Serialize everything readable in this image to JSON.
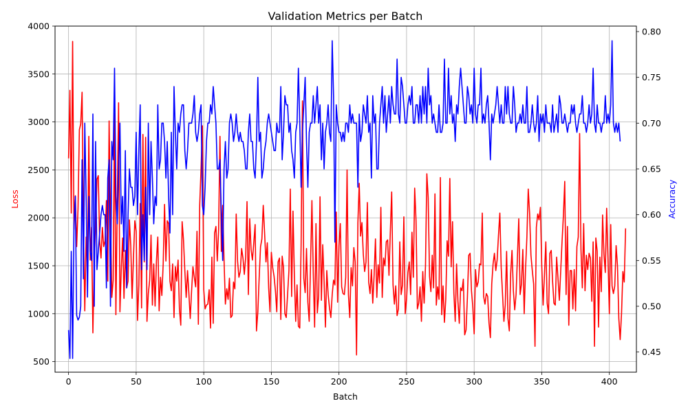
{
  "chart_data": {
    "type": "line",
    "title": "Validation Metrics per Batch",
    "xlabel": "Batch",
    "xlim": [
      -10,
      420
    ],
    "xticks": [
      0,
      50,
      100,
      150,
      200,
      250,
      300,
      350,
      400
    ],
    "grid": true,
    "left_axis": {
      "label": "Loss",
      "color": "#ff0000",
      "ylim": [
        390,
        4000
      ],
      "ticks": [
        500,
        1000,
        1500,
        2000,
        2500,
        3000,
        3500,
        4000
      ]
    },
    "right_axis": {
      "label": "Accuracy",
      "color": "#0000ff",
      "ylim": [
        0.428,
        0.806
      ],
      "ticks": [
        "0.45",
        "0.50",
        "0.55",
        "0.60",
        "0.65",
        "0.70",
        "0.75",
        "0.80"
      ]
    },
    "series": [
      {
        "axis": "left",
        "color": "#ff0000",
        "x_start": 0,
        "x_step": 1,
        "values": [
          2620,
          3330,
          2050,
          3840,
          1880,
          2230,
          1700,
          2100,
          2920,
          2980,
          3310,
          1900,
          1030,
          1800,
          1500,
          2850,
          1560,
          1900,
          800,
          1550,
          1900,
          2400,
          2440,
          1760,
          1580,
          1900,
          1700,
          1760,
          2180,
          1340,
          3010,
          2050,
          1170,
          1350,
          3090,
          990,
          2140,
          3200,
          1020,
          1470,
          1790,
          1160,
          1660,
          1270,
          1340,
          1980,
          1710,
          1160,
          1580,
          1970,
          1860,
          930,
          1300,
          2150,
          1060,
          2870,
          1540,
          2840,
          920,
          1210,
          1350,
          1820,
          1090,
          1520,
          1080,
          1550,
          1800,
          1030,
          1380,
          1190,
          1520,
          2140,
          1550,
          1970,
          1940,
          1340,
          1240,
          1520,
          960,
          1490,
          1340,
          1560,
          1050,
          880,
          1960,
          1770,
          1450,
          1170,
          1450,
          1210,
          950,
          1240,
          1490,
          1380,
          1280,
          1860,
          890,
          2130,
          2520,
          2960,
          1250,
          1050,
          1090,
          1100,
          1250,
          850,
          1590,
          900,
          1840,
          1910,
          1550,
          1880,
          2850,
          1650,
          2130,
          1560,
          1100,
          1260,
          1150,
          1370,
          960,
          980,
          1330,
          1260,
          2040,
          1550,
          1380,
          1440,
          1680,
          1580,
          1410,
          1590,
          2170,
          1200,
          1990,
          1670,
          1560,
          1740,
          1930,
          820,
          1020,
          1380,
          1700,
          1780,
          2130,
          1840,
          1540,
          1740,
          1270,
          1020,
          1640,
          1480,
          1390,
          1240,
          1020,
          1540,
          1580,
          940,
          1600,
          1480,
          1000,
          960,
          1200,
          1450,
          2300,
          1180,
          2070,
          1410,
          920,
          1300,
          870,
          850,
          1710,
          3220,
          1370,
          1220,
          1680,
          1120,
          920,
          1530,
          2180,
          1420,
          860,
          1940,
          1010,
          1190,
          2220,
          1140,
          1720,
          1340,
          860,
          1450,
          1200,
          1060,
          960,
          1200,
          1350,
          1300,
          2060,
          1120,
          1710,
          1940,
          1280,
          1210,
          1200,
          1380,
          2500,
          1200,
          960,
          1480,
          1290,
          1690,
          1540,
          570,
          1950,
          2360,
          1810,
          1950,
          1620,
          1440,
          1540,
          2160,
          1330,
          1210,
          1460,
          1110,
          1400,
          1780,
          1170,
          1510,
          1320,
          2110,
          1170,
          1580,
          1500,
          1750,
          1770,
          1400,
          1860,
          2270,
          1300,
          1100,
          1290,
          980,
          1050,
          1750,
          1200,
          1300,
          2010,
          1000,
          1150,
          1430,
          1540,
          1200,
          1850,
          1380,
          2310,
          1970,
          1050,
          1110,
          1280,
          920,
          1440,
          1110,
          1500,
          2460,
          2210,
          1390,
          1230,
          1610,
          1270,
          2250,
          1090,
          1280,
          1150,
          2420,
          990,
          1290,
          910,
          1150,
          1760,
          1600,
          2410,
          1490,
          1960,
          1210,
          920,
          1520,
          1130,
          900,
          1270,
          1240,
          1360,
          780,
          830,
          1170,
          1610,
          1630,
          1240,
          1070,
          790,
          1460,
          1280,
          1330,
          1520,
          1510,
          2050,
          1180,
          1100,
          1210,
          1180,
          900,
          750,
          1310,
          1520,
          1630,
          1450,
          1560,
          1820,
          2050,
          1480,
          1200,
          920,
          1090,
          1650,
          950,
          820,
          1420,
          1660,
          1240,
          1040,
          1200,
          1590,
          1990,
          1200,
          1310,
          1670,
          1000,
          1460,
          1800,
          2300,
          2050,
          1610,
          1450,
          1310,
          660,
          1900,
          2040,
          1980,
          2110,
          1500,
          1090,
          1410,
          1750,
          1110,
          1000,
          1630,
          1660,
          1340,
          1110,
          1090,
          1590,
          1370,
          1140,
          1440,
          1750,
          2020,
          2380,
          1200,
          1910,
          880,
          1450,
          1450,
          1050,
          1460,
          1030,
          1700,
          1800,
          2880,
          1670,
          1270,
          1940,
          1240,
          1610,
          1460,
          1630,
          1580,
          1130,
          1750,
          660,
          1790,
          1650,
          860,
          1590,
          1230,
          2030,
          1620,
          1430,
          2100,
          1570,
          1000,
          1930,
          1290,
          1210,
          1290,
          1710,
          1500,
          950,
          730,
          1000,
          1440,
          1330,
          1890
        ]
      },
      {
        "axis": "right",
        "color": "#0000ff",
        "x_start": 0,
        "x_step": 1,
        "values": [
          0.474,
          0.443,
          0.56,
          0.443,
          0.59,
          0.62,
          0.49,
          0.485,
          0.488,
          0.5,
          0.66,
          0.53,
          0.7,
          0.62,
          0.51,
          0.62,
          0.56,
          0.55,
          0.71,
          0.5,
          0.68,
          0.54,
          0.56,
          0.58,
          0.6,
          0.61,
          0.6,
          0.6,
          0.52,
          0.64,
          0.66,
          0.5,
          0.68,
          0.66,
          0.76,
          0.62,
          0.59,
          0.65,
          0.7,
          0.59,
          0.62,
          0.56,
          0.67,
          0.52,
          0.6,
          0.65,
          0.63,
          0.63,
          0.61,
          0.62,
          0.69,
          0.6,
          0.67,
          0.72,
          0.54,
          0.6,
          0.55,
          0.63,
          0.54,
          0.7,
          0.6,
          0.68,
          0.64,
          0.59,
          0.62,
          0.61,
          0.72,
          0.65,
          0.66,
          0.7,
          0.7,
          0.68,
          0.64,
          0.68,
          0.62,
          0.58,
          0.69,
          0.6,
          0.74,
          0.69,
          0.65,
          0.7,
          0.69,
          0.71,
          0.72,
          0.72,
          0.67,
          0.65,
          0.67,
          0.7,
          0.7,
          0.7,
          0.71,
          0.73,
          0.69,
          0.68,
          0.69,
          0.71,
          0.72,
          0.61,
          0.6,
          0.63,
          0.68,
          0.7,
          0.7,
          0.72,
          0.71,
          0.74,
          0.72,
          0.7,
          0.65,
          0.65,
          0.66,
          0.6,
          0.55,
          0.65,
          0.68,
          0.64,
          0.65,
          0.7,
          0.71,
          0.7,
          0.68,
          0.69,
          0.71,
          0.69,
          0.68,
          0.69,
          0.68,
          0.68,
          0.67,
          0.65,
          0.65,
          0.69,
          0.71,
          0.68,
          0.68,
          0.65,
          0.64,
          0.68,
          0.75,
          0.68,
          0.69,
          0.64,
          0.65,
          0.67,
          0.68,
          0.7,
          0.71,
          0.7,
          0.69,
          0.68,
          0.67,
          0.67,
          0.7,
          0.69,
          0.69,
          0.74,
          0.66,
          0.69,
          0.73,
          0.72,
          0.72,
          0.69,
          0.7,
          0.67,
          0.66,
          0.64,
          0.69,
          0.7,
          0.76,
          0.7,
          0.63,
          0.69,
          0.72,
          0.75,
          0.68,
          0.63,
          0.69,
          0.7,
          0.7,
          0.73,
          0.7,
          0.72,
          0.74,
          0.7,
          0.72,
          0.66,
          0.7,
          0.65,
          0.69,
          0.7,
          0.72,
          0.69,
          0.68,
          0.79,
          0.73,
          0.57,
          0.72,
          0.7,
          0.69,
          0.69,
          0.68,
          0.69,
          0.68,
          0.7,
          0.7,
          0.69,
          0.72,
          0.7,
          0.71,
          0.7,
          0.7,
          0.7,
          0.63,
          0.71,
          0.68,
          0.69,
          0.72,
          0.71,
          0.7,
          0.73,
          0.69,
          0.7,
          0.64,
          0.73,
          0.7,
          0.71,
          0.65,
          0.65,
          0.7,
          0.72,
          0.74,
          0.7,
          0.73,
          0.69,
          0.71,
          0.73,
          0.7,
          0.74,
          0.72,
          0.71,
          0.71,
          0.77,
          0.71,
          0.7,
          0.75,
          0.74,
          0.72,
          0.7,
          0.7,
          0.72,
          0.73,
          0.72,
          0.74,
          0.7,
          0.7,
          0.72,
          0.72,
          0.7,
          0.73,
          0.7,
          0.74,
          0.71,
          0.74,
          0.7,
          0.76,
          0.72,
          0.73,
          0.7,
          0.71,
          0.7,
          0.69,
          0.69,
          0.72,
          0.69,
          0.69,
          0.7,
          0.77,
          0.7,
          0.7,
          0.76,
          0.71,
          0.73,
          0.7,
          0.71,
          0.68,
          0.72,
          0.71,
          0.74,
          0.76,
          0.74,
          0.72,
          0.7,
          0.7,
          0.74,
          0.73,
          0.71,
          0.72,
          0.7,
          0.76,
          0.71,
          0.7,
          0.72,
          0.72,
          0.76,
          0.7,
          0.71,
          0.7,
          0.72,
          0.73,
          0.7,
          0.66,
          0.71,
          0.7,
          0.71,
          0.72,
          0.74,
          0.72,
          0.7,
          0.72,
          0.7,
          0.7,
          0.74,
          0.71,
          0.74,
          0.71,
          0.7,
          0.7,
          0.74,
          0.72,
          0.69,
          0.7,
          0.7,
          0.71,
          0.7,
          0.72,
          0.7,
          0.7,
          0.74,
          0.69,
          0.69,
          0.7,
          0.72,
          0.7,
          0.69,
          0.7,
          0.73,
          0.68,
          0.71,
          0.7,
          0.71,
          0.69,
          0.72,
          0.7,
          0.7,
          0.7,
          0.69,
          0.72,
          0.69,
          0.7,
          0.71,
          0.69,
          0.73,
          0.72,
          0.7,
          0.7,
          0.71,
          0.7,
          0.69,
          0.7,
          0.7,
          0.72,
          0.71,
          0.72,
          0.7,
          0.69,
          0.7,
          0.71,
          0.71,
          0.73,
          0.7,
          0.7,
          0.69,
          0.7,
          0.72,
          0.7,
          0.71,
          0.76,
          0.7,
          0.69,
          0.72,
          0.7,
          0.7,
          0.69,
          0.7,
          0.7,
          0.73,
          0.7,
          0.71,
          0.7,
          0.72,
          0.79,
          0.7,
          0.69,
          0.7,
          0.69,
          0.7,
          0.68
        ]
      }
    ]
  }
}
